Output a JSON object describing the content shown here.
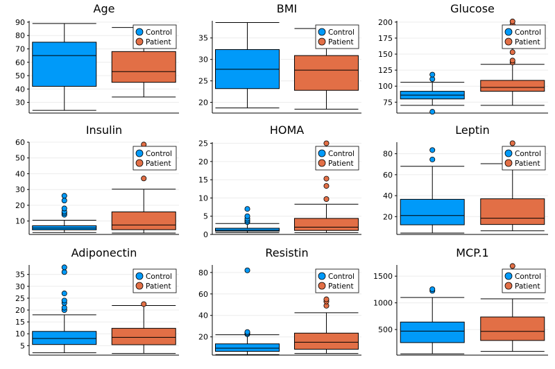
{
  "colors": {
    "control": "#009af9",
    "patient": "#e26f46"
  },
  "chart_data": [
    {
      "type": "box",
      "title": "Age",
      "ylim": [
        22,
        91
      ],
      "yticks": [
        30,
        40,
        50,
        60,
        70,
        80,
        90
      ],
      "legend_position": "top-right",
      "series": [
        {
          "name": "Control",
          "whisker_low": 24,
          "q1": 42,
          "median": 65,
          "q3": 75,
          "whisker_high": 89,
          "outliers": []
        },
        {
          "name": "Patient",
          "whisker_low": 34,
          "q1": 45,
          "median": 53,
          "q3": 68,
          "whisker_high": 86,
          "outliers": []
        }
      ]
    },
    {
      "type": "box",
      "title": "BMI",
      "ylim": [
        17.5,
        39
      ],
      "yticks": [
        20,
        25,
        30,
        35
      ],
      "legend_position": "top-right",
      "series": [
        {
          "name": "Control",
          "whisker_low": 18.7,
          "q1": 23.2,
          "median": 27.7,
          "q3": 32.3,
          "whisker_high": 38.6,
          "outliers": []
        },
        {
          "name": "Patient",
          "whisker_low": 18.4,
          "q1": 22.8,
          "median": 27.5,
          "q3": 30.9,
          "whisker_high": 37.2,
          "outliers": []
        }
      ]
    },
    {
      "type": "box",
      "title": "Glucose",
      "ylim": [
        58,
        202
      ],
      "yticks": [
        75,
        100,
        125,
        150,
        175,
        200
      ],
      "legend_position": "top-right",
      "series": [
        {
          "name": "Control",
          "whisker_low": 70,
          "q1": 80,
          "median": 86,
          "q3": 92,
          "whisker_high": 106,
          "outliers": [
            60,
            111,
            118
          ]
        },
        {
          "name": "Patient",
          "whisker_low": 70,
          "q1": 92,
          "median": 98,
          "q3": 109,
          "whisker_high": 134,
          "outliers": [
            137,
            140,
            153,
            162,
            170,
            182,
            196,
            201
          ]
        }
      ]
    },
    {
      "type": "box",
      "title": "Insulin",
      "ylim": [
        1.5,
        60
      ],
      "yticks": [
        10,
        20,
        30,
        40,
        50,
        60
      ],
      "legend_position": "top-right",
      "series": [
        {
          "name": "Control",
          "whisker_low": 2.7,
          "q1": 4.4,
          "median": 5.5,
          "q3": 7.0,
          "whisker_high": 10.5,
          "outliers": [
            14,
            15,
            16,
            18,
            23,
            26
          ]
        },
        {
          "name": "Patient",
          "whisker_low": 2.4,
          "q1": 4.5,
          "median": 7.5,
          "q3": 15.8,
          "whisker_high": 30.2,
          "outliers": [
            37,
            58.5
          ]
        }
      ]
    },
    {
      "type": "box",
      "title": "HOMA",
      "ylim": [
        0,
        25.3
      ],
      "yticks": [
        0,
        5,
        10,
        15,
        20,
        25
      ],
      "legend_position": "top-right",
      "series": [
        {
          "name": "Control",
          "whisker_low": 0.47,
          "q1": 0.9,
          "median": 1.15,
          "q3": 1.7,
          "whisker_high": 3.0,
          "outliers": [
            3.4,
            3.8,
            4.3,
            5.0,
            7.0
          ]
        },
        {
          "name": "Patient",
          "whisker_low": 0.5,
          "q1": 1.1,
          "median": 2.0,
          "q3": 4.4,
          "whisker_high": 8.3,
          "outliers": [
            9.7,
            13.3,
            15.3,
            25.0
          ]
        }
      ]
    },
    {
      "type": "box",
      "title": "Leptin",
      "ylim": [
        3,
        91
      ],
      "yticks": [
        20,
        40,
        60,
        80
      ],
      "legend_position": "top-right",
      "series": [
        {
          "name": "Control",
          "whisker_low": 4.3,
          "q1": 12.2,
          "median": 21,
          "q3": 36.5,
          "whisker_high": 68,
          "outliers": [
            74.5,
            83.5
          ]
        },
        {
          "name": "Patient",
          "whisker_low": 6.5,
          "q1": 12.5,
          "median": 18.5,
          "q3": 37,
          "whisker_high": 70.5,
          "outliers": [
            90
          ]
        }
      ]
    },
    {
      "type": "box",
      "title": "Adiponectin",
      "ylim": [
        1,
        39
      ],
      "yticks": [
        5,
        10,
        15,
        20,
        25,
        30,
        35
      ],
      "legend_position": "top-right",
      "series": [
        {
          "name": "Control",
          "whisker_low": 2.0,
          "q1": 5.5,
          "median": 8.0,
          "q3": 11.0,
          "whisker_high": 18.0,
          "outliers": [
            20,
            21,
            23,
            24,
            27,
            36,
            38
          ]
        },
        {
          "name": "Patient",
          "whisker_low": 1.7,
          "q1": 5.4,
          "median": 8.5,
          "q3": 12.3,
          "whisker_high": 21.9,
          "outliers": [
            22.5
          ]
        }
      ]
    },
    {
      "type": "box",
      "title": "Resistin",
      "ylim": [
        3,
        87
      ],
      "yticks": [
        20,
        40,
        60,
        80
      ],
      "legend_position": "top-right",
      "series": [
        {
          "name": "Control",
          "whisker_low": 3.5,
          "q1": 6.5,
          "median": 9.5,
          "q3": 13.5,
          "whisker_high": 22,
          "outliers": [
            22.5,
            23.5,
            24.5,
            82
          ]
        },
        {
          "name": "Patient",
          "whisker_low": 4.5,
          "q1": 8.5,
          "median": 15,
          "q3": 23.5,
          "whisker_high": 42.5,
          "outliers": [
            49,
            53,
            55
          ]
        }
      ]
    },
    {
      "type": "box",
      "title": "MCP.1",
      "ylim": [
        20,
        1710
      ],
      "yticks": [
        500,
        1000,
        1500
      ],
      "legend_position": "top-right",
      "series": [
        {
          "name": "Control",
          "whisker_low": 45,
          "q1": 255,
          "median": 470,
          "q3": 640,
          "whisker_high": 1100,
          "outliers": [
            1225,
            1255
          ]
        },
        {
          "name": "Patient",
          "whisker_low": 90,
          "q1": 295,
          "median": 465,
          "q3": 735,
          "whisker_high": 1075,
          "outliers": [
            1690
          ]
        }
      ]
    }
  ]
}
